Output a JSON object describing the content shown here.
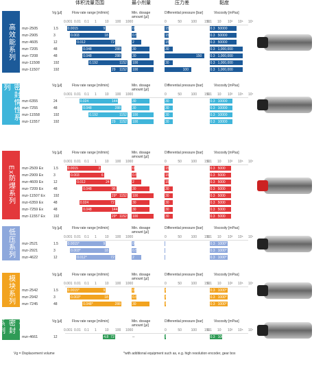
{
  "header": {
    "flow": "体积流量范围",
    "dosage": "最小剂量",
    "pressure": "压力差",
    "viscosity": "黏度"
  },
  "columns": {
    "vg": "Vg [µl]",
    "flow": "Flow rate range [ml/min]",
    "dosage": "Min. dosage amount [µl]",
    "pressure": "Differential pressure [bar]",
    "viscosity": "Viscosity [mPas]"
  },
  "ticks": {
    "flow": [
      "0.001",
      "0.01",
      "0.1",
      "1",
      "10",
      "100",
      "1000"
    ],
    "pressure": [
      "0",
      "50",
      "100",
      "150"
    ],
    "viscosity": [
      "0.1",
      "10",
      "10³",
      "10⁵",
      "10⁷"
    ]
  },
  "sections": [
    {
      "label": "高效能系列",
      "color": "#1c5a99",
      "rows": [
        [
          "mzr-2505",
          "1.5",
          "0.0015",
          "9",
          "0.25",
          "15",
          "0.3",
          "50000"
        ],
        [
          "mzr-2905",
          "3",
          "0.003",
          "18",
          "0.5",
          "15",
          "0.3",
          "50000"
        ],
        [
          "mzr-4605",
          "12",
          "0.012",
          "72",
          "2",
          "15",
          "0.3",
          "50000"
        ],
        [
          "mzr-7205",
          "48",
          "0.048",
          "288",
          "30",
          "30",
          "0.3",
          "1,000,000"
        ],
        [
          "mzr-7208",
          "48",
          "0.048",
          "288",
          "30",
          "150",
          "0.3",
          "1,000,000"
        ],
        [
          "mzr-11508",
          "192",
          "0.192",
          "1152",
          "100",
          "30",
          "0.3",
          "1,000,000"
        ],
        [
          "mzr-11507",
          "192",
          "29",
          "1152",
          "100",
          "100",
          "0.3",
          "1,000,000"
        ]
      ]
    },
    {
      "label": "密封惰性系列",
      "color": "#3fb5da",
      "rows": [
        [
          "mzr-6355",
          "24",
          "0.024",
          "144",
          "30",
          "30",
          "0.3",
          "10000"
        ],
        [
          "mzr-7255",
          "48",
          "0.048",
          "288",
          "30",
          "30",
          "0.3",
          "10000"
        ],
        [
          "mzr-11558",
          "192",
          "0.192",
          "1152",
          "100",
          "30",
          "0.3",
          "10000"
        ],
        [
          "mzr-11557",
          "192",
          "29",
          "1152",
          "100",
          "30",
          "0.3",
          "10000"
        ]
      ]
    },
    {
      "label": "Ex防爆系列",
      "color": "#e3383b",
      "rows": [
        [
          "mzr-2509 Ex",
          "1.5",
          "0.0015",
          "3",
          "0.25",
          "15",
          "0.3",
          "5000"
        ],
        [
          "mzr-2909 Ex",
          "3",
          "0.003",
          "6",
          "0.5",
          "15",
          "0.3",
          "5000"
        ],
        [
          "mzr-4609 Ex",
          "12",
          "0.012",
          "24",
          "2",
          "15",
          "0.3",
          "5000"
        ],
        [
          "mzr-7209 Ex",
          "48",
          "0.048",
          "96",
          "30",
          "30",
          "0.3",
          "5000"
        ],
        [
          "mzr-11507 Ex",
          "192",
          "29*",
          "1152",
          "100",
          "30",
          "0.3",
          "5000"
        ],
        [
          "mzr-6359 Ex",
          "48",
          "0.024",
          "72",
          "30",
          "30",
          "0.3",
          "5000"
        ],
        [
          "mzr-7259 Ex",
          "48",
          "0.048",
          "144",
          "30",
          "30",
          "0.3",
          "5000"
        ],
        [
          "mzr-11557 Ex",
          "192",
          "29*",
          "1152",
          "100",
          "30",
          "0.3",
          "5000"
        ]
      ]
    },
    {
      "label": "低压系列",
      "color": "#8ea8dc",
      "rows": [
        [
          "mzr-2521",
          "1.5",
          "0.0015*",
          "9",
          "0.25",
          "1.5",
          "0.3",
          "1000*"
        ],
        [
          "mzr-2921",
          "3",
          "0.003*",
          "18",
          "0.5",
          "1.5",
          "0.3",
          "1000*"
        ],
        [
          "mzr-4622",
          "12",
          "0.012*",
          "72",
          "2",
          "1.5",
          "0.3",
          "1000*"
        ]
      ]
    },
    {
      "label": "模块系列",
      "color": "#f2a31f",
      "rows": [
        [
          "mzr-2542",
          "1.5",
          "0.0015*",
          "9",
          "0.25",
          "5",
          "0.3",
          "1000*"
        ],
        [
          "mzr-2942",
          "3",
          "0.003*",
          "18",
          "0.5",
          "5",
          "0.3",
          "1000*"
        ],
        [
          "mzr-7245",
          "48",
          "0.048*",
          "288",
          "30",
          "5",
          "0.3",
          "1000*"
        ]
      ]
    },
    {
      "label": "磁性密封系列",
      "color": "#2f9b56",
      "rows": [
        [
          "mzr-4661",
          "12",
          "4.8",
          "72",
          "--",
          "5",
          "0.3",
          "100"
        ]
      ]
    }
  ],
  "footer": {
    "note1": "Vg = Displacement volume",
    "note2": "*with additional equipment such as, e.g. high resolution encoder, gear box"
  }
}
